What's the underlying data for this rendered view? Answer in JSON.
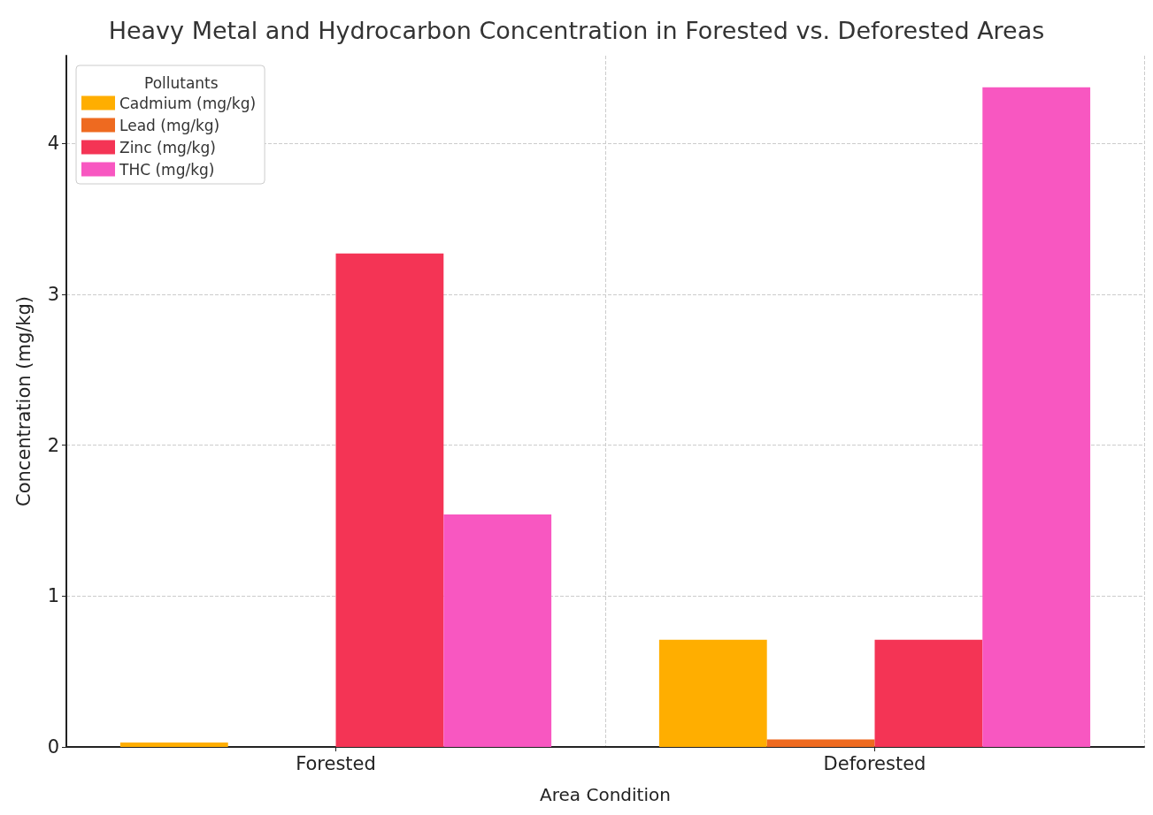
{
  "chart_data": {
    "type": "bar",
    "title": "Heavy Metal and Hydrocarbon Concentration in Forested vs. Deforested Areas",
    "xlabel": "Area Condition",
    "ylabel": "Concentration (mg/kg)",
    "legend_title": "Pollutants",
    "categories": [
      "Forested",
      "Deforested"
    ],
    "series": [
      {
        "name": "Cadmium (mg/kg)",
        "color": "#ffae00",
        "values": [
          0.03,
          0.71
        ]
      },
      {
        "name": "Lead (mg/kg)",
        "color": "#ee6a20",
        "values": [
          0,
          0.05
        ]
      },
      {
        "name": "Zinc (mg/kg)",
        "color": "#f43455",
        "values": [
          3.27,
          0.71
        ]
      },
      {
        "name": "THC (mg/kg)",
        "color": "#f857c1",
        "values": [
          1.54,
          4.37
        ]
      }
    ],
    "ylim": [
      0,
      4.58
    ],
    "yticks": [
      0,
      1,
      2,
      3,
      4
    ],
    "grid": true,
    "legend": "top left"
  }
}
